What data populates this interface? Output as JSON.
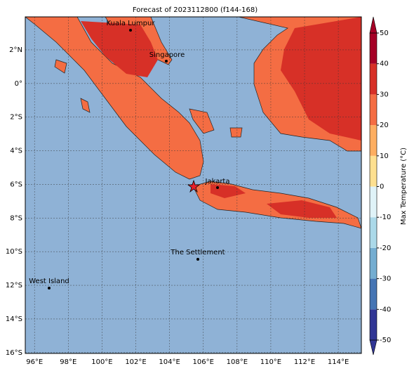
{
  "title": "Forecast of 2023112800 (f144-168)",
  "cities": [
    "Kuala Lumpur",
    "Singapore",
    "Jakarta",
    "The Settlement",
    "West Island"
  ],
  "lon_ticks": [
    {
      "value": 96,
      "label": "96°E"
    },
    {
      "value": 98,
      "label": "98°E"
    },
    {
      "value": 100,
      "label": "100°E"
    },
    {
      "value": 102,
      "label": "102°E"
    },
    {
      "value": 104,
      "label": "104°E"
    },
    {
      "value": 106,
      "label": "106°E"
    },
    {
      "value": 108,
      "label": "108°E"
    },
    {
      "value": 110,
      "label": "110°E"
    },
    {
      "value": 112,
      "label": "112°E"
    },
    {
      "value": 114,
      "label": "114°E"
    }
  ],
  "lat_ticks": [
    {
      "value": 2,
      "label": "2°N"
    },
    {
      "value": 0,
      "label": "0°"
    },
    {
      "value": -2,
      "label": "2°S"
    },
    {
      "value": -4,
      "label": "4°S"
    },
    {
      "value": -6,
      "label": "6°S"
    },
    {
      "value": -8,
      "label": "8°S"
    },
    {
      "value": -10,
      "label": "10°S"
    },
    {
      "value": -12,
      "label": "12°S"
    },
    {
      "value": -14,
      "label": "14°S"
    },
    {
      "value": -16,
      "label": "16°S"
    }
  ],
  "colorbar": {
    "label": "Max Temperature (°C)",
    "ticks": [
      -50,
      -40,
      -30,
      -20,
      -10,
      0,
      10,
      20,
      30,
      40,
      50
    ],
    "colors": [
      "#313695",
      "#4575b4",
      "#74add1",
      "#abd9e9",
      "#e0f3f8",
      "#fee090",
      "#fdae61",
      "#f46d43",
      "#d73027",
      "#a50026"
    ]
  }
}
